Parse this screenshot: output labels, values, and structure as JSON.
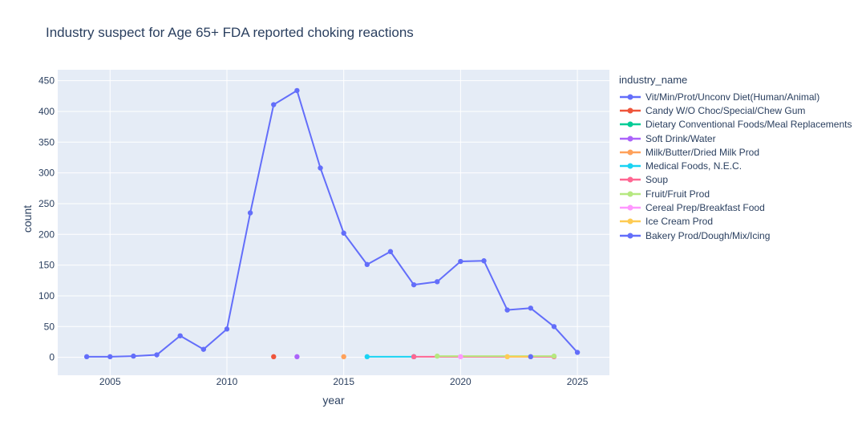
{
  "page": {
    "background": "#ffffff"
  },
  "chart_data": {
    "type": "line",
    "title": "Industry suspect for Age 65+ FDA reported choking reactions",
    "xlabel": "year",
    "ylabel": "count",
    "legend_title": "industry_name",
    "plot_bg_color": "#E5ECF6",
    "grid_color": "#FFFFFF",
    "text_color": "#2a3f5f",
    "x_ticks": [
      2005,
      2010,
      2015,
      2020,
      2025
    ],
    "y_ticks": [
      0,
      50,
      100,
      150,
      200,
      250,
      300,
      350,
      400,
      450
    ],
    "x_range": [
      2002.76,
      2026.37
    ],
    "y_range": [
      -29.2,
      467.8
    ],
    "legend_position": "right",
    "grid": true,
    "series": [
      {
        "name": "Vit/Min/Prot/Unconv Diet(Human/Animal)",
        "color": "#636EFA",
        "x": [
          2004,
          2005,
          2006,
          2007,
          2008,
          2009,
          2010,
          2011,
          2012,
          2013,
          2014,
          2015,
          2016,
          2017,
          2018,
          2019,
          2020,
          2021,
          2022,
          2023,
          2024,
          2025
        ],
        "y": [
          1,
          1,
          2,
          4,
          35,
          13,
          46,
          235,
          411,
          434,
          308,
          202,
          151,
          172,
          118,
          123,
          156,
          157,
          77,
          80,
          50,
          8
        ]
      },
      {
        "name": "Candy W/O Choc/Special/Chew Gum",
        "color": "#EF553B",
        "x": [
          2012
        ],
        "y": [
          1
        ]
      },
      {
        "name": "Dietary Conventional Foods/Meal Replacements",
        "color": "#00CC96",
        "x": [
          2018
        ],
        "y": [
          1
        ]
      },
      {
        "name": "Soft Drink/Water",
        "color": "#AB63FA",
        "x": [
          2013
        ],
        "y": [
          1
        ]
      },
      {
        "name": "Milk/Butter/Dried Milk Prod",
        "color": "#FFA15A",
        "x": [
          2015
        ],
        "y": [
          1
        ]
      },
      {
        "name": "Medical Foods, N.E.C.",
        "color": "#19D3F3",
        "x": [
          2016,
          2018
        ],
        "y": [
          1,
          1
        ]
      },
      {
        "name": "Soup",
        "color": "#FF6692",
        "x": [
          2018,
          2024
        ],
        "y": [
          1,
          1
        ]
      },
      {
        "name": "Fruit/Fruit Prod",
        "color": "#B6E880",
        "x": [
          2019,
          2024
        ],
        "y": [
          2,
          2
        ]
      },
      {
        "name": "Cereal Prep/Breakfast Food",
        "color": "#FF97FF",
        "x": [
          2020
        ],
        "y": [
          1
        ]
      },
      {
        "name": "Ice Cream Prod",
        "color": "#FECB52",
        "x": [
          2022,
          2023
        ],
        "y": [
          1,
          1
        ]
      },
      {
        "name": "Bakery Prod/Dough/Mix/Icing",
        "color": "#636EFA",
        "x": [
          2023
        ],
        "y": [
          1
        ]
      }
    ]
  }
}
